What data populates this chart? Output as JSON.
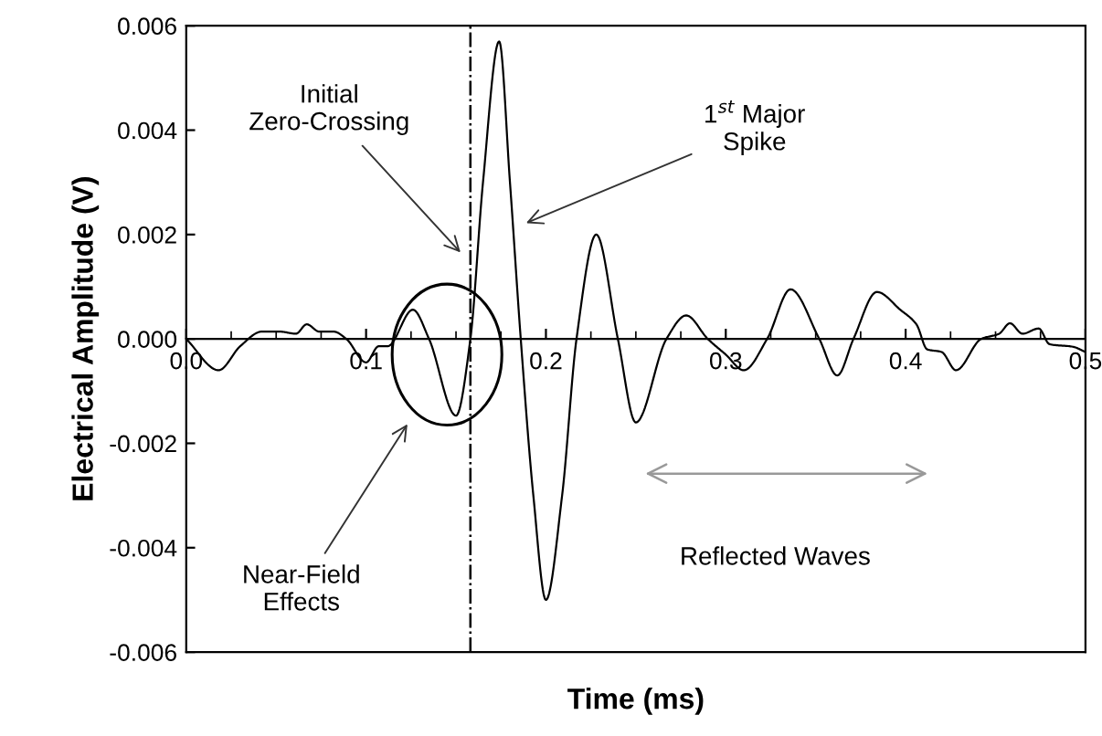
{
  "chart_data": {
    "type": "line",
    "xlabel": "Time (ms)",
    "ylabel": "Electrical Amplitude (V)",
    "series": [
      {
        "color": "#000000",
        "x": [
          0.0,
          0.018,
          0.03,
          0.042,
          0.052,
          0.061,
          0.067,
          0.074,
          0.082,
          0.089,
          0.1,
          0.107,
          0.112,
          0.126,
          0.135,
          0.15,
          0.158,
          0.165,
          0.174,
          0.18,
          0.186,
          0.193,
          0.2,
          0.209,
          0.217,
          0.228,
          0.24,
          0.25,
          0.267,
          0.278,
          0.29,
          0.3,
          0.31,
          0.323,
          0.336,
          0.352,
          0.362,
          0.371,
          0.384,
          0.397,
          0.406,
          0.412,
          0.42,
          0.428,
          0.442,
          0.452,
          0.458,
          0.465,
          0.474,
          0.48,
          0.493,
          0.5
        ],
        "values": [
          0.0,
          -0.0006,
          -0.00014,
          0.00014,
          0.00014,
          0.0001,
          0.00028,
          0.00014,
          0.00014,
          0.0,
          -0.00045,
          -0.00014,
          -0.00014,
          0.00056,
          0.0,
          -0.00147,
          0.0,
          0.003,
          0.0057,
          0.003,
          0.0,
          -0.003,
          -0.005,
          -0.003,
          0.0,
          0.002,
          0.0,
          -0.0016,
          0.0,
          0.00045,
          0.0,
          -0.0003,
          -0.0006,
          0.0,
          0.00095,
          0.0,
          -0.0007,
          0.0,
          0.0009,
          0.00056,
          0.00028,
          -0.0002,
          -0.00025,
          -0.0006,
          0.0,
          0.0001,
          0.0003,
          0.0001,
          0.0002,
          -0.0001,
          -0.00015,
          -0.00025
        ]
      }
    ],
    "xlim": [
      0,
      0.5
    ],
    "xticks": [
      {
        "value": 0,
        "label": "0.0"
      },
      0.1,
      0.2,
      0.3,
      0.4,
      0.5
    ],
    "ylim": [
      -0.006,
      0.006
    ],
    "yticks": [
      -0.006,
      -0.004,
      -0.002,
      {
        "value": 0,
        "label": "0.000"
      },
      0.002,
      0.004,
      0.006
    ],
    "ref_lines": [
      {
        "axis": "x",
        "value": 0.158,
        "line_style": "dashdot",
        "color": "#000000"
      }
    ],
    "annotations": [
      "Initial\nZero-Crossing",
      "1$^{st}$ Major\nSpike",
      "Near-Field\nEffects",
      "Reflected Waves"
    ],
    "grid": false,
    "legend": false,
    "marker": "none",
    "line_style": "solid"
  }
}
